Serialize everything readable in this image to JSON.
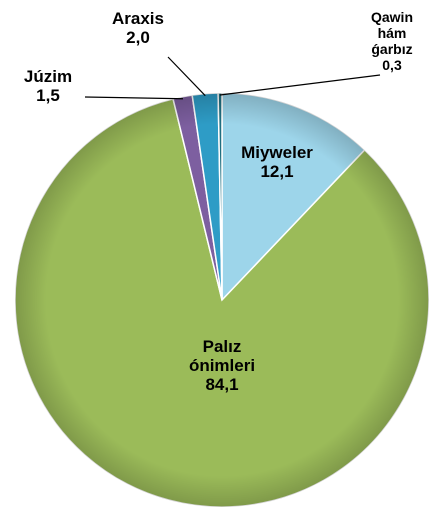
{
  "chart_data": {
    "type": "pie",
    "categories": [
      "Miyweler",
      "Palız ónimleri",
      "Júzim",
      "Araxis",
      "Qawin hám ǵarbız"
    ],
    "values": [
      12.1,
      84.1,
      1.5,
      2.0,
      0.3
    ],
    "value_labels": [
      "12,1",
      "84,1",
      "1,5",
      "2,0",
      "0,3"
    ],
    "colors": [
      "#9dd5ea",
      "#9bbb59",
      "#7d5fa0",
      "#2e9cc6",
      "#1f6f80"
    ]
  }
}
